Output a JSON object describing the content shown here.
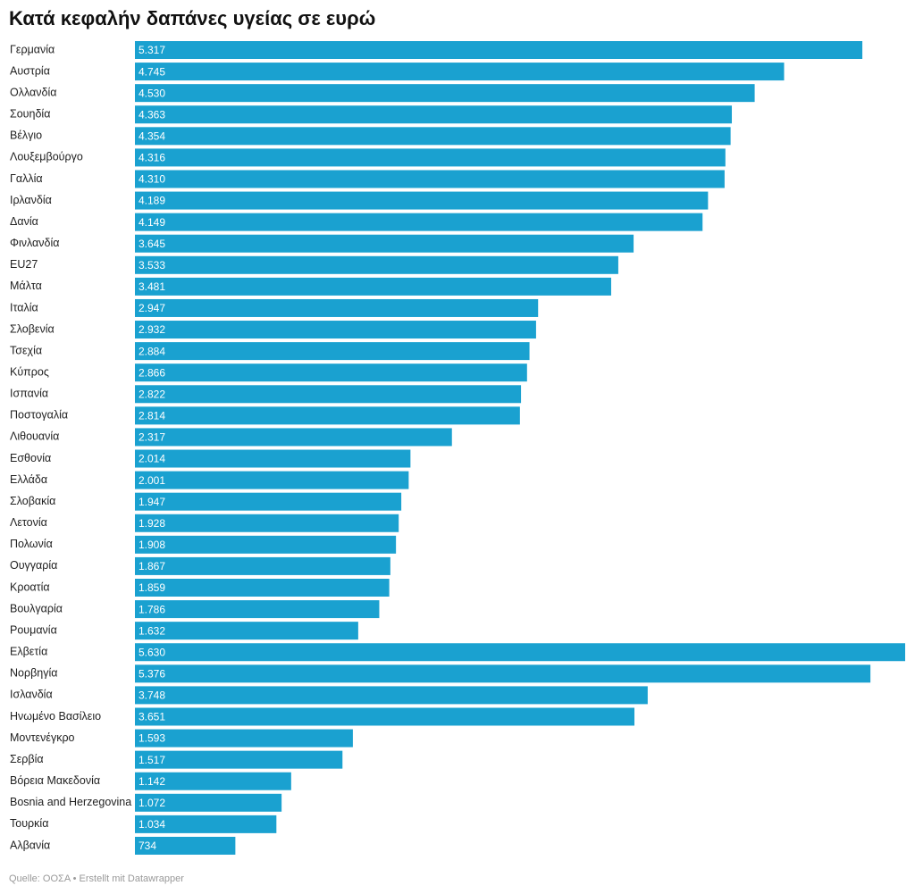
{
  "chart_data": {
    "type": "bar",
    "orientation": "horizontal",
    "title": "Κατά κεφαλήν δαπάνες υγείας σε ευρώ",
    "source": "Quelle: ΟΟΣΑ • Erstellt mit Datawrapper",
    "color": "#1aa1d0",
    "categories": [
      "Γερμανία",
      "Αυστρία",
      "Ολλανδία",
      "Σουηδία",
      "Βέλγιο",
      "Λουξεμβούργο",
      "Γαλλία",
      "Ιρλανδία",
      "Δανία",
      "Φινλανδία",
      "EU27",
      "Μάλτα",
      "Ιταλία",
      "Σλοβενία",
      "Τσεχία",
      "Κύπρος",
      "Ισπανία",
      "Ποστογαλία",
      "Λιθουανία",
      "Εσθονία",
      "Ελλάδα",
      "Σλοβακία",
      "Λετονία",
      "Πολωνία",
      "Ουγγαρία",
      "Κροατία",
      "Βουλγαρία",
      "Ρουμανία",
      "Ελβετία",
      "Νορβηγία",
      "Ισλανδία",
      "Ηνωμένο Βασίλειο",
      "Μοντενέγκρο",
      "Σερβία",
      "Βόρεια Μακεδονία",
      "Bosnia and Herzegovina",
      "Τουρκία",
      "Αλβανία"
    ],
    "values": [
      5317,
      4745,
      4530,
      4363,
      4354,
      4316,
      4310,
      4189,
      4149,
      3645,
      3533,
      3481,
      2947,
      2932,
      2884,
      2866,
      2822,
      2814,
      2317,
      2014,
      2001,
      1947,
      1928,
      1908,
      1867,
      1859,
      1786,
      1632,
      5630,
      5376,
      3748,
      3651,
      1593,
      1517,
      1142,
      1072,
      1034,
      734
    ],
    "value_labels": [
      "5.317",
      "4.745",
      "4.530",
      "4.363",
      "4.354",
      "4.316",
      "4.310",
      "4.189",
      "4.149",
      "3.645",
      "3.533",
      "3.481",
      "2.947",
      "2.932",
      "2.884",
      "2.866",
      "2.822",
      "2.814",
      "2.317",
      "2.014",
      "2.001",
      "1.947",
      "1.928",
      "1.908",
      "1.867",
      "1.859",
      "1.786",
      "1.632",
      "5.630",
      "5.376",
      "3.748",
      "3.651",
      "1.593",
      "1.517",
      "1.142",
      "1.072",
      "1.034",
      "734"
    ]
  }
}
